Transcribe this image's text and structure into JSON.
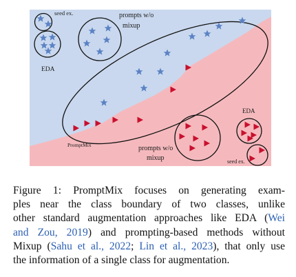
{
  "figure": {
    "labels": {
      "seed_top": "seed ex.",
      "eda_left": "EDA",
      "prompts_top": "prompts w/o",
      "mixup_top": "mixup",
      "promptmix": "PromptMix",
      "prompts_bottom": "prompts w/o",
      "mixup_bottom": "mixup",
      "eda_right": "EDA",
      "seed_bottom": "seed ex."
    },
    "colors": {
      "class_a_region": "#c9d8ee",
      "class_b_region": "#f5b9bd",
      "star": "#5b82c4",
      "triangle": "#c8102e",
      "outline": "#111111"
    },
    "icons": {
      "class_a_marker": "star-icon",
      "class_b_marker": "triangle-icon"
    }
  },
  "caption": {
    "lines": [
      "Figure 1: PromptMix focuses on generating exam-",
      "ples near the class boundary of two classes, unlike",
      "other standard augmentation approaches like EDA (",
      "and Zou, 2019) and prompting-based methods without",
      "Mixup (",
      "the information of a single class for augmentation."
    ],
    "cite_wei": "Wei",
    "line4_cite": "and Zou, 2019",
    "line4_rest": ") and prompting-based methods without",
    "line5_cite1": "Sahu et al., 2022",
    "line5_sep": "; ",
    "line5_cite2": "Lin et al., 2023",
    "line5_rest": "), that only use"
  }
}
